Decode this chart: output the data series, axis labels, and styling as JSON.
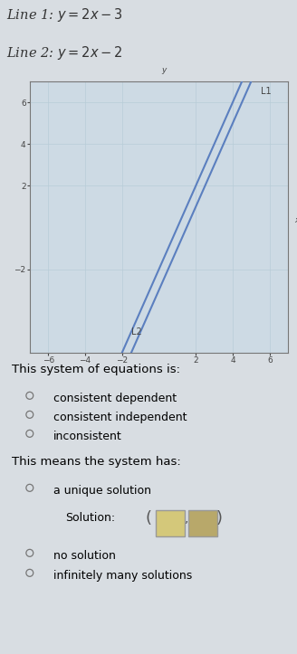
{
  "line1_slope": 2,
  "line1_intercept": -3,
  "line2_slope": 2,
  "line2_intercept": -2,
  "line_color": "#5b7fbf",
  "line_width": 1.5,
  "x_range": [
    -7,
    7
  ],
  "y_range": [
    -6,
    7
  ],
  "x_ticks": [
    -6,
    -4,
    -2,
    2,
    4,
    6
  ],
  "y_ticks": [
    -2,
    2,
    4,
    6
  ],
  "grid_color": "#b8ccd8",
  "axis_color": "#444444",
  "label_L1": "L1",
  "label_L2": "L2",
  "bg_color": "#d8dde2",
  "plot_bg": "#cddae4",
  "title1": "Line 1: $y=2x-3$",
  "title2": "Line 2: $y=2x-2$",
  "system_label": "This system of equations is:",
  "options_system": [
    "consistent dependent",
    "consistent independent",
    "inconsistent"
  ],
  "means_label": "This means the system has:",
  "options_means": [
    "a unique solution",
    "no solution",
    "infinitely many solutions"
  ],
  "solution_label": "Solution:",
  "font_size_header": 10.5,
  "font_size_text": 9.5,
  "box1_color": "#d4c87a",
  "box2_color": "#b8a86a"
}
